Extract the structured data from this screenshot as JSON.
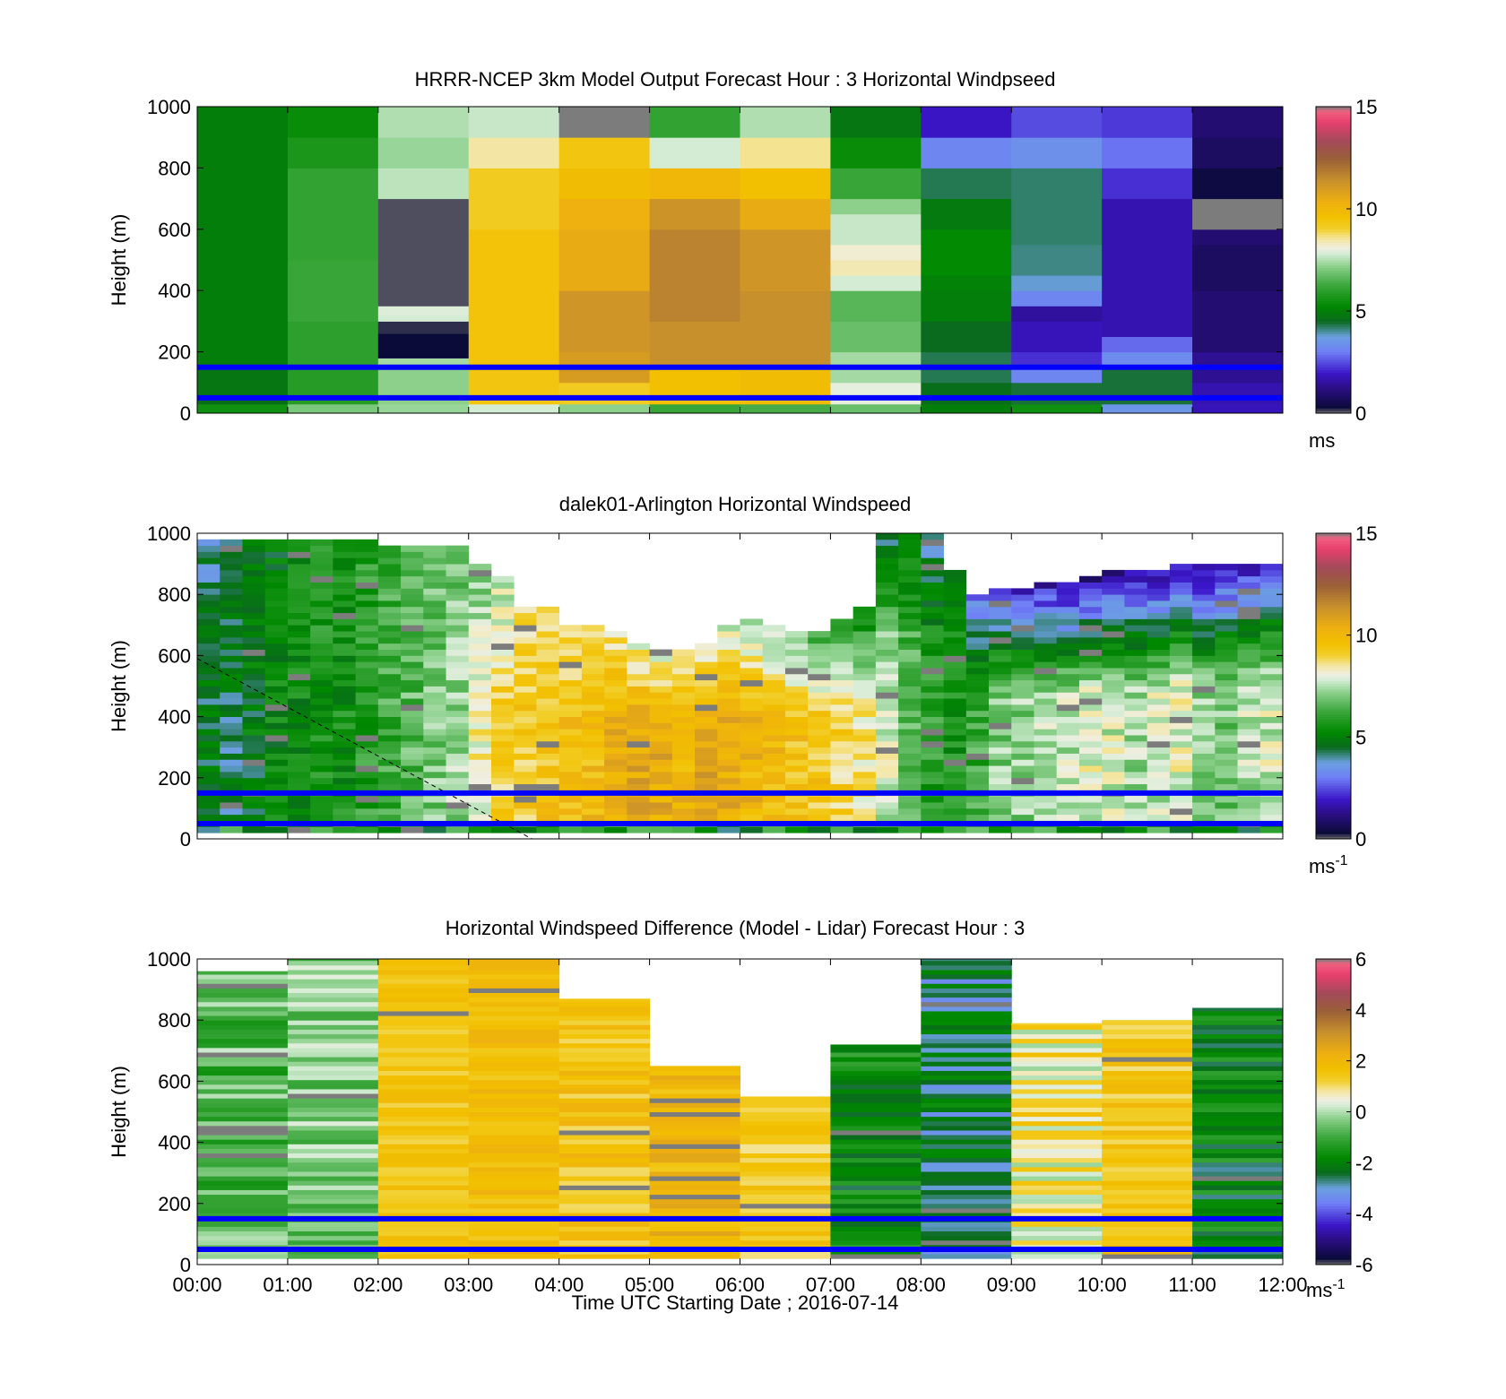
{
  "figure": {
    "xaxis": {
      "ticks": [
        "00:00",
        "01:00",
        "02:00",
        "03:00",
        "04:00",
        "05:00",
        "06:00",
        "07:00",
        "08:00",
        "09:00",
        "10:00",
        "11:00",
        "12:00"
      ],
      "label": "Time UTC  Starting Date ; 2016-07-14"
    }
  },
  "colors": {
    "reference_lines": "#0000ff",
    "colormap": [
      [
        0.0,
        "#707070"
      ],
      [
        0.02,
        "#0b0b3a"
      ],
      [
        0.08,
        "#2a0e80"
      ],
      [
        0.13,
        "#3a16c8"
      ],
      [
        0.2,
        "#6f7ef6"
      ],
      [
        0.25,
        "#6ba0e0"
      ],
      [
        0.3,
        "#0a6a1e"
      ],
      [
        0.35,
        "#008800"
      ],
      [
        0.42,
        "#3ea83e"
      ],
      [
        0.48,
        "#8cd08c"
      ],
      [
        0.52,
        "#d4ecd4"
      ],
      [
        0.54,
        "#efefe2"
      ],
      [
        0.57,
        "#f4e59c"
      ],
      [
        0.6,
        "#f2d030"
      ],
      [
        0.64,
        "#f2c000"
      ],
      [
        0.69,
        "#eeb010"
      ],
      [
        0.76,
        "#c8902c"
      ],
      [
        0.83,
        "#9a6038"
      ],
      [
        0.89,
        "#a34a5a"
      ],
      [
        0.95,
        "#e8406e"
      ],
      [
        0.985,
        "#f06080"
      ],
      [
        1.0,
        "#7c7c7c"
      ]
    ]
  },
  "chart_data": [
    {
      "type": "heatmap",
      "title": "HRRR-NCEP 3km Model Output   Forecast Hour : 3 Horizontal Windpseed",
      "ylabel": "Height (m)",
      "ylim": [
        0,
        1000
      ],
      "yticks": [
        "0",
        "200",
        "400",
        "600",
        "800",
        "1000"
      ],
      "xlim": [
        0,
        12
      ],
      "colorbar": {
        "ticks": [
          "0",
          "5",
          "10",
          "15"
        ],
        "min": 0,
        "max": 15,
        "unit": "ms",
        "unit_exp": ""
      },
      "reference_lines_m": [
        50,
        150
      ],
      "columns": [
        {
          "t0": 0,
          "t1": 1,
          "levels": [
            [
              0,
              30,
              5.5
            ],
            [
              30,
              60,
              4.6
            ],
            [
              60,
              150,
              4.8
            ],
            [
              150,
              1000,
              5.0
            ]
          ]
        },
        {
          "t0": 1,
          "t1": 2,
          "levels": [
            [
              0,
              30,
              7.0
            ],
            [
              30,
              150,
              5.9
            ],
            [
              150,
              300,
              6.0
            ],
            [
              300,
              500,
              6.2
            ],
            [
              500,
              800,
              6.1
            ],
            [
              800,
              900,
              5.7
            ],
            [
              900,
              1000,
              5.4
            ]
          ]
        },
        {
          "t0": 2,
          "t1": 3,
          "levels": [
            [
              0,
              30,
              7.3
            ],
            [
              30,
              150,
              7.2
            ],
            [
              150,
              180,
              7.4
            ],
            [
              180,
              260,
              0.3
            ],
            [
              260,
              300,
              0.2
            ],
            [
              300,
              320,
              7.8
            ],
            [
              320,
              350,
              7.9
            ],
            [
              350,
              700,
              0.1
            ],
            [
              700,
              800,
              7.6
            ],
            [
              800,
              900,
              7.3
            ],
            [
              900,
              1000,
              7.5
            ]
          ]
        },
        {
          "t0": 3,
          "t1": 4,
          "levels": [
            [
              0,
              30,
              7.8
            ],
            [
              30,
              150,
              9.4
            ],
            [
              150,
              600,
              9.5
            ],
            [
              600,
              800,
              9.2
            ],
            [
              800,
              900,
              8.5
            ],
            [
              900,
              1000,
              7.7
            ]
          ]
        },
        {
          "t0": 4,
          "t1": 5,
          "levels": [
            [
              0,
              30,
              7.2
            ],
            [
              30,
              100,
              9.2
            ],
            [
              100,
              200,
              11.0
            ],
            [
              200,
              400,
              11.2
            ],
            [
              400,
              600,
              10.5
            ],
            [
              600,
              700,
              10.3
            ],
            [
              700,
              800,
              9.8
            ],
            [
              800,
              900,
              9.4
            ],
            [
              900,
              1000,
              15.0
            ]
          ]
        },
        {
          "t0": 5,
          "t1": 6,
          "levels": [
            [
              0,
              30,
              6.2
            ],
            [
              30,
              150,
              9.6
            ],
            [
              150,
              300,
              11.4
            ],
            [
              300,
              600,
              11.7
            ],
            [
              600,
              700,
              11.3
            ],
            [
              700,
              800,
              10.0
            ],
            [
              800,
              900,
              7.8
            ],
            [
              900,
              1000,
              6.1
            ]
          ]
        },
        {
          "t0": 6,
          "t1": 7,
          "levels": [
            [
              0,
              30,
              6.4
            ],
            [
              30,
              150,
              9.8
            ],
            [
              150,
              400,
              11.4
            ],
            [
              400,
              600,
              11.2
            ],
            [
              600,
              700,
              10.5
            ],
            [
              700,
              800,
              9.6
            ],
            [
              800,
              900,
              8.6
            ],
            [
              900,
              1000,
              7.5
            ]
          ]
        },
        {
          "t0": 7,
          "t1": 8,
          "levels": [
            [
              0,
              30,
              6.8
            ],
            [
              30,
              100,
              8.0
            ],
            [
              100,
              200,
              7.4
            ],
            [
              200,
              300,
              6.8
            ],
            [
              300,
              400,
              6.6
            ],
            [
              400,
              450,
              7.8
            ],
            [
              450,
              500,
              8.4
            ],
            [
              500,
              550,
              8.2
            ],
            [
              550,
              650,
              7.7
            ],
            [
              650,
              700,
              7.2
            ],
            [
              700,
              800,
              6.2
            ],
            [
              800,
              900,
              5.4
            ],
            [
              900,
              1000,
              4.8
            ]
          ]
        },
        {
          "t0": 8,
          "t1": 9,
          "levels": [
            [
              0,
              30,
              5.0
            ],
            [
              30,
              100,
              4.6
            ],
            [
              100,
              200,
              4.3
            ],
            [
              200,
              300,
              4.5
            ],
            [
              300,
              400,
              5.0
            ],
            [
              400,
              450,
              5.1
            ],
            [
              450,
              600,
              5.3
            ],
            [
              600,
              700,
              4.9
            ],
            [
              700,
              800,
              4.3
            ],
            [
              800,
              900,
              3.2
            ],
            [
              900,
              1000,
              1.9
            ]
          ]
        },
        {
          "t0": 9,
          "t1": 10,
          "levels": [
            [
              0,
              30,
              5.5
            ],
            [
              30,
              100,
              4.4
            ],
            [
              100,
              150,
              3.2
            ],
            [
              150,
              200,
              2.2
            ],
            [
              200,
              300,
              1.8
            ],
            [
              300,
              350,
              1.5
            ],
            [
              350,
              400,
              3.2
            ],
            [
              400,
              450,
              3.8
            ],
            [
              450,
              550,
              4.1
            ],
            [
              550,
              700,
              4.2
            ],
            [
              700,
              800,
              4.2
            ],
            [
              800,
              900,
              3.4
            ],
            [
              900,
              1000,
              2.5
            ]
          ]
        },
        {
          "t0": 10,
          "t1": 11,
          "levels": [
            [
              0,
              30,
              3.5
            ],
            [
              30,
              150,
              4.4
            ],
            [
              150,
              200,
              3.3
            ],
            [
              200,
              250,
              2.8
            ],
            [
              250,
              300,
              1.7
            ],
            [
              300,
              700,
              1.7
            ],
            [
              700,
              800,
              2.2
            ],
            [
              800,
              900,
              2.9
            ],
            [
              900,
              1000,
              2.3
            ]
          ]
        },
        {
          "t0": 11,
          "t1": 12,
          "levels": [
            [
              0,
              30,
              1.8
            ],
            [
              30,
              100,
              1.7
            ],
            [
              100,
              200,
              1.4
            ],
            [
              200,
              400,
              1.0
            ],
            [
              400,
              550,
              0.8
            ],
            [
              550,
              600,
              1.0
            ],
            [
              600,
              700,
              15.0
            ],
            [
              700,
              800,
              0.4
            ],
            [
              800,
              900,
              0.8
            ],
            [
              900,
              1000,
              1.0
            ]
          ]
        }
      ]
    },
    {
      "type": "heatmap",
      "title": "dalek01-Arlington  Horizontal Windspeed",
      "ylabel": "Height (m)",
      "ylim": [
        0,
        1000
      ],
      "yticks": [
        "0",
        "200",
        "400",
        "600",
        "800",
        "1000"
      ],
      "xlim": [
        0,
        12
      ],
      "colorbar": {
        "ticks": [
          "0",
          "5",
          "10",
          "15"
        ],
        "min": 0,
        "max": 15,
        "unit": "ms",
        "unit_exp": "-1"
      },
      "reference_lines_m": [
        50,
        150
      ],
      "dashed_line": [
        [
          0,
          590
        ],
        [
          3.7,
          0
        ]
      ],
      "lidar_profile_h": 1000,
      "lidar_data_top_m": [
        980,
        980,
        980,
        980,
        980,
        980,
        980,
        980,
        960,
        960,
        960,
        960,
        900,
        860,
        760,
        760,
        700,
        700,
        680,
        640,
        620,
        620,
        640,
        700,
        720,
        700,
        680,
        680,
        720,
        760,
        990,
        990,
        990,
        880,
        800,
        820,
        820,
        840,
        840,
        850,
        870,
        870,
        880,
        900,
        900,
        900,
        900,
        900
      ],
      "lidar_mean_ms": [
        4.6,
        4.5,
        4.8,
        5.2,
        5.4,
        5.6,
        5.5,
        5.9,
        6.3,
        6.6,
        7.0,
        7.3,
        8.2,
        9.0,
        9.3,
        9.5,
        9.6,
        9.8,
        10.4,
        10.6,
        10.5,
        10.2,
        10.6,
        10.4,
        10.1,
        9.9,
        9.6,
        9.4,
        9.0,
        8.6,
        7.8,
        6.8,
        5.9,
        5.6,
        6.2,
        7.1,
        7.2,
        7.4,
        7.6,
        8.0,
        7.8,
        7.4,
        7.7,
        8.0,
        7.2,
        7.0,
        7.5,
        7.8
      ],
      "lidar_top_ms": [
        4.0,
        4.3,
        4.6,
        4.8,
        5.5,
        5.8,
        5.5,
        6.0,
        6.3,
        6.5,
        6.7,
        6.8,
        7.0,
        7.5,
        8.5,
        8.8,
        8.6,
        8.5,
        8.3,
        8.0,
        7.8,
        7.8,
        8.0,
        7.7,
        7.4,
        7.0,
        6.8,
        6.2,
        5.5,
        4.8,
        4.4,
        4.8,
        4.0,
        5.0,
        3.0,
        2.3,
        1.8,
        1.5,
        1.3,
        1.2,
        1.2,
        1.3,
        1.2,
        1.4,
        1.1,
        1.4,
        1.6,
        1.9
      ]
    },
    {
      "type": "heatmap",
      "title": "Horizontal Windspeed Difference (Model - Lidar) Forecast Hour : 3",
      "ylabel": "Height (m)",
      "ylim": [
        0,
        1000
      ],
      "yticks": [
        "0",
        "200",
        "400",
        "600",
        "800",
        "1000"
      ],
      "xlim": [
        0,
        12
      ],
      "colorbar": {
        "ticks": [
          "6",
          "4",
          "2",
          "0",
          "-2",
          "-4",
          "-6"
        ],
        "min": -6,
        "max": 6,
        "unit": "ms",
        "unit_exp": "-1"
      },
      "reference_lines_m": [
        50,
        150
      ],
      "columns_diff": [
        {
          "t0": 0,
          "t1": 1,
          "top": 960,
          "base": -0.7,
          "spread": 0.9
        },
        {
          "t0": 1,
          "t1": 2,
          "top": 1000,
          "base": -0.3,
          "spread": 0.8
        },
        {
          "t0": 2,
          "t1": 3,
          "top": 1000,
          "base": 1.5,
          "spread": 0.4
        },
        {
          "t0": 3,
          "t1": 4,
          "top": 1000,
          "base": 1.8,
          "spread": 0.5
        },
        {
          "t0": 4,
          "t1": 5,
          "top": 870,
          "base": 1.6,
          "spread": 0.6
        },
        {
          "t0": 5,
          "t1": 6,
          "top": 650,
          "base": 2.0,
          "spread": 0.6
        },
        {
          "t0": 6,
          "t1": 7,
          "top": 550,
          "base": 1.4,
          "spread": 0.6
        },
        {
          "t0": 7,
          "t1": 8,
          "top": 720,
          "base": -1.8,
          "spread": 0.8
        },
        {
          "t0": 8,
          "t1": 9,
          "top": 1000,
          "base": -2.5,
          "spread": 0.9
        },
        {
          "t0": 9,
          "t1": 10,
          "top": 790,
          "base": 0.8,
          "spread": 1.0
        },
        {
          "t0": 10,
          "t1": 11,
          "top": 800,
          "base": 1.5,
          "spread": 0.6
        },
        {
          "t0": 11,
          "t1": 12,
          "top": 840,
          "base": -2.0,
          "spread": 0.9
        }
      ]
    }
  ]
}
